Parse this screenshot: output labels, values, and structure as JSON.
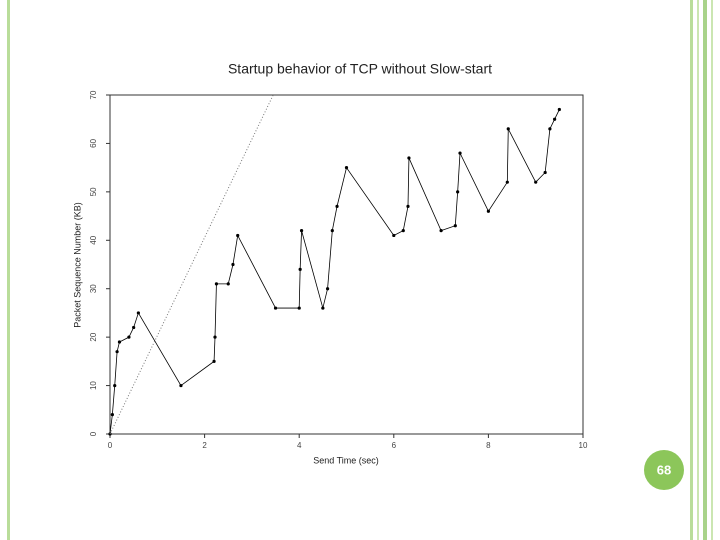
{
  "chart_data": {
    "type": "line",
    "title": "Startup behavior of TCP without Slow-start",
    "xlabel": "Send Time (sec)",
    "ylabel": "Packet Sequence Number (KB)",
    "xlim": [
      0,
      10
    ],
    "ylim": [
      0,
      70
    ],
    "xticks": [
      0,
      2,
      4,
      6,
      8,
      10
    ],
    "yticks": [
      0,
      10,
      20,
      30,
      40,
      50,
      60,
      70
    ],
    "grid": false,
    "series": [
      {
        "color": "#000000",
        "line_style": "solid",
        "markers": true,
        "x": [
          0,
          0.05,
          0.1,
          0.15,
          0.2,
          0.4,
          0.5,
          0.6,
          1.5,
          2.2,
          2.22,
          2.25,
          2.5,
          2.6,
          2.7,
          3.5,
          4.0,
          4.02,
          4.05,
          4.5,
          4.6,
          4.7,
          4.8,
          5.0,
          6.0,
          6.2,
          6.3,
          6.32,
          7.0,
          7.3,
          7.35,
          7.4,
          8.0,
          8.4,
          8.42,
          9.0,
          9.2,
          9.3,
          9.4,
          9.5
        ],
        "values": [
          0,
          4,
          10,
          17,
          19,
          20,
          22,
          25,
          10,
          15,
          20,
          31,
          31,
          35,
          41,
          26,
          26,
          34,
          42,
          26,
          30,
          42,
          47,
          55,
          41,
          42,
          47,
          57,
          42,
          43,
          50,
          58,
          46,
          52,
          63,
          52,
          54,
          63,
          65,
          67
        ]
      },
      {
        "color": "#777777",
        "line_style": "dotted",
        "markers": false,
        "x": [
          0,
          3.45
        ],
        "values": [
          0,
          70
        ]
      }
    ]
  },
  "slide_number": "68"
}
